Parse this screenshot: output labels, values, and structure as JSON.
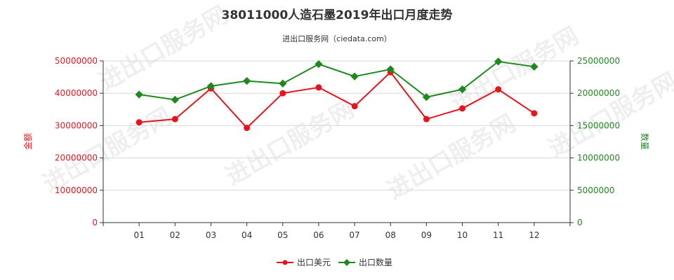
{
  "title": "38011000人造石墨2019年出口月度走势",
  "subtitle": "进出口服务网（ciedata.com）",
  "watermark": "进出口服务网",
  "colors": {
    "amount": "#e8141c",
    "quantity": "#1e8a1e",
    "grid": "#d9d9d9",
    "axis": "#333333"
  },
  "chart_data": {
    "type": "line",
    "x": [
      "01",
      "02",
      "03",
      "04",
      "05",
      "06",
      "07",
      "08",
      "09",
      "10",
      "11",
      "12"
    ],
    "grid": true,
    "legend_position": "bottom",
    "y_left": {
      "label": "金额",
      "ylim": [
        0,
        50000000
      ],
      "ticks": [
        "0",
        "10000000",
        "20000000",
        "30000000",
        "40000000",
        "50000000"
      ]
    },
    "y_right": {
      "label": "数量",
      "ylim": [
        0,
        25000000
      ],
      "ticks": [
        "0",
        "5000000",
        "10000000",
        "15000000",
        "20000000",
        "25000000"
      ]
    },
    "series": [
      {
        "name": "出口美元",
        "axis": "left",
        "values": [
          31000000,
          32000000,
          41500000,
          29300000,
          40000000,
          41800000,
          36000000,
          46500000,
          32000000,
          35300000,
          41200000,
          33800000
        ]
      },
      {
        "name": "出口数量",
        "axis": "right",
        "values": [
          19800000,
          19000000,
          21100000,
          21900000,
          21500000,
          24500000,
          22600000,
          23700000,
          19400000,
          20600000,
          24900000,
          24100000
        ]
      }
    ]
  }
}
